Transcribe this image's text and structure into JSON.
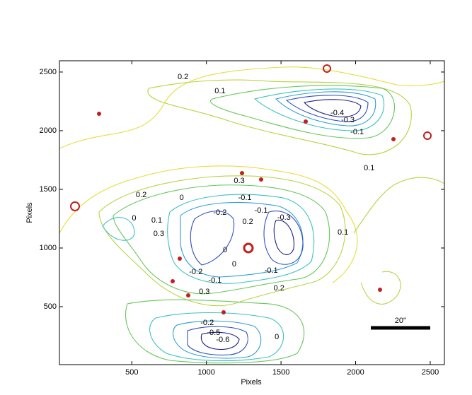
{
  "chart_data": {
    "type": "contour",
    "xlabel": "Pixels",
    "ylabel": "Pixels",
    "xlim": [
      15,
      2595
    ],
    "ylim": [
      6,
      2596
    ],
    "xticks": [
      500,
      1000,
      1500,
      2000,
      2500
    ],
    "yticks": [
      500,
      1000,
      1500,
      2000,
      2500
    ],
    "scale_bar": {
      "label": "20\"",
      "x": [
        2100,
        2500
      ],
      "y": 320
    },
    "contour_labels": [
      {
        "level": 0.2,
        "x": 843,
        "y": 2458
      },
      {
        "level": 0.1,
        "x": 1091,
        "y": 2337
      },
      {
        "level": -0.4,
        "x": 1877,
        "y": 2151
      },
      {
        "level": -0.3,
        "x": 1948,
        "y": 2090
      },
      {
        "level": -0.1,
        "x": 2010,
        "y": 1988
      },
      {
        "level": 0.1,
        "x": 2091,
        "y": 1681
      },
      {
        "level": 0.3,
        "x": 1220,
        "y": 1572
      },
      {
        "level": 0.2,
        "x": 563,
        "y": 1452
      },
      {
        "level": 0,
        "x": 834,
        "y": 1428
      },
      {
        "level": -0.1,
        "x": 1258,
        "y": 1428
      },
      {
        "level": -0.2,
        "x": 1091,
        "y": 1301
      },
      {
        "level": 0.2,
        "x": 1277,
        "y": 1223
      },
      {
        "level": -0.1,
        "x": 1367,
        "y": 1319
      },
      {
        "level": -0.3,
        "x": 1520,
        "y": 1259
      },
      {
        "level": 0,
        "x": 515,
        "y": 1253
      },
      {
        "level": 0.1,
        "x": 667,
        "y": 1235
      },
      {
        "level": 0.3,
        "x": 681,
        "y": 1120
      },
      {
        "level": 0.1,
        "x": 1915,
        "y": 1133
      },
      {
        "level": 0,
        "x": 1125,
        "y": 982
      },
      {
        "level": 0,
        "x": 1186,
        "y": 861
      },
      {
        "level": -0.2,
        "x": 929,
        "y": 795
      },
      {
        "level": -0.1,
        "x": 1058,
        "y": 723
      },
      {
        "level": -0.1,
        "x": 1434,
        "y": 807
      },
      {
        "level": 0.3,
        "x": 986,
        "y": 626
      },
      {
        "level": 0.2,
        "x": 1486,
        "y": 657
      },
      {
        "level": -0.2,
        "x": 1005,
        "y": 361
      },
      {
        "level": 0,
        "x": 1472,
        "y": 241
      },
      {
        "level": -0.5,
        "x": 1048,
        "y": 277
      },
      {
        "level": -0.6,
        "x": 1110,
        "y": 217
      }
    ]
  }
}
